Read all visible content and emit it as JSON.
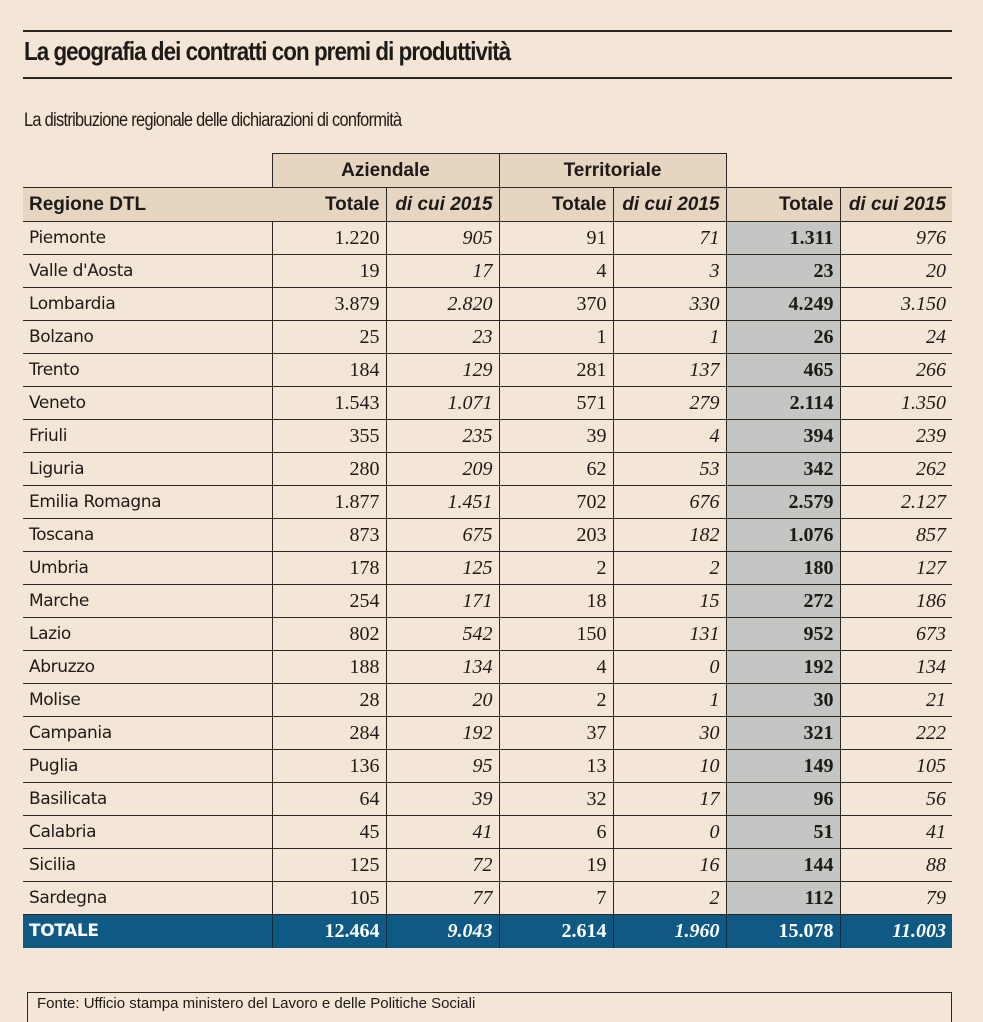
{
  "header": {
    "title": "La geografia dei contratti con premi di produttività",
    "subtitle": "La distribuzione regionale delle dichiarazioni di conformità"
  },
  "table": {
    "group_headers": [
      "Aziendale",
      "Territoriale"
    ],
    "columns": [
      "Regione DTL",
      "Totale",
      "di cui 2015",
      "Totale",
      "di cui 2015",
      "Totale",
      "di cui 2015"
    ],
    "rows": [
      {
        "region": "Piemonte",
        "az_tot": "1.220",
        "az_2015": "905",
        "te_tot": "91",
        "te_2015": "71",
        "tot": "1.311",
        "tot_2015": "976"
      },
      {
        "region": "Valle d'Aosta",
        "az_tot": "19",
        "az_2015": "17",
        "te_tot": "4",
        "te_2015": "3",
        "tot": "23",
        "tot_2015": "20"
      },
      {
        "region": "Lombardia",
        "az_tot": "3.879",
        "az_2015": "2.820",
        "te_tot": "370",
        "te_2015": "330",
        "tot": "4.249",
        "tot_2015": "3.150"
      },
      {
        "region": "Bolzano",
        "az_tot": "25",
        "az_2015": "23",
        "te_tot": "1",
        "te_2015": "1",
        "tot": "26",
        "tot_2015": "24"
      },
      {
        "region": "Trento",
        "az_tot": "184",
        "az_2015": "129",
        "te_tot": "281",
        "te_2015": "137",
        "tot": "465",
        "tot_2015": "266"
      },
      {
        "region": "Veneto",
        "az_tot": "1.543",
        "az_2015": "1.071",
        "te_tot": "571",
        "te_2015": "279",
        "tot": "2.114",
        "tot_2015": "1.350"
      },
      {
        "region": "Friuli",
        "az_tot": "355",
        "az_2015": "235",
        "te_tot": "39",
        "te_2015": "4",
        "tot": "394",
        "tot_2015": "239"
      },
      {
        "region": "Liguria",
        "az_tot": "280",
        "az_2015": "209",
        "te_tot": "62",
        "te_2015": "53",
        "tot": "342",
        "tot_2015": "262"
      },
      {
        "region": "Emilia Romagna",
        "az_tot": "1.877",
        "az_2015": "1.451",
        "te_tot": "702",
        "te_2015": "676",
        "tot": "2.579",
        "tot_2015": "2.127"
      },
      {
        "region": "Toscana",
        "az_tot": "873",
        "az_2015": "675",
        "te_tot": "203",
        "te_2015": "182",
        "tot": "1.076",
        "tot_2015": "857"
      },
      {
        "region": "Umbria",
        "az_tot": "178",
        "az_2015": "125",
        "te_tot": "2",
        "te_2015": "2",
        "tot": "180",
        "tot_2015": "127"
      },
      {
        "region": "Marche",
        "az_tot": "254",
        "az_2015": "171",
        "te_tot": "18",
        "te_2015": "15",
        "tot": "272",
        "tot_2015": "186"
      },
      {
        "region": "Lazio",
        "az_tot": "802",
        "az_2015": "542",
        "te_tot": "150",
        "te_2015": "131",
        "tot": "952",
        "tot_2015": "673"
      },
      {
        "region": "Abruzzo",
        "az_tot": "188",
        "az_2015": "134",
        "te_tot": "4",
        "te_2015": "0",
        "tot": "192",
        "tot_2015": "134"
      },
      {
        "region": "Molise",
        "az_tot": "28",
        "az_2015": "20",
        "te_tot": "2",
        "te_2015": "1",
        "tot": "30",
        "tot_2015": "21"
      },
      {
        "region": "Campania",
        "az_tot": "284",
        "az_2015": "192",
        "te_tot": "37",
        "te_2015": "30",
        "tot": "321",
        "tot_2015": "222"
      },
      {
        "region": "Puglia",
        "az_tot": "136",
        "az_2015": "95",
        "te_tot": "13",
        "te_2015": "10",
        "tot": "149",
        "tot_2015": "105"
      },
      {
        "region": "Basilicata",
        "az_tot": "64",
        "az_2015": "39",
        "te_tot": "32",
        "te_2015": "17",
        "tot": "96",
        "tot_2015": "56"
      },
      {
        "region": "Calabria",
        "az_tot": "45",
        "az_2015": "41",
        "te_tot": "6",
        "te_2015": "0",
        "tot": "51",
        "tot_2015": "41"
      },
      {
        "region": "Sicilia",
        "az_tot": "125",
        "az_2015": "72",
        "te_tot": "19",
        "te_2015": "16",
        "tot": "144",
        "tot_2015": "88"
      },
      {
        "region": "Sardegna",
        "az_tot": "105",
        "az_2015": "77",
        "te_tot": "7",
        "te_2015": "2",
        "tot": "112",
        "tot_2015": "79"
      }
    ],
    "total": {
      "region": "TOTALE",
      "az_tot": "12.464",
      "az_2015": "9.043",
      "te_tot": "2.614",
      "te_2015": "1.960",
      "tot": "15.078",
      "tot_2015": "11.003"
    }
  },
  "footer": {
    "source": "Fonte: Ufficio stampa ministero del Lavoro e delle Politiche Sociali"
  },
  "colors": {
    "background": "#f4e6d6",
    "header_fill": "#e6d5c1",
    "highlight_column": "#c4c6c4",
    "total_row": "#0e5a85"
  }
}
